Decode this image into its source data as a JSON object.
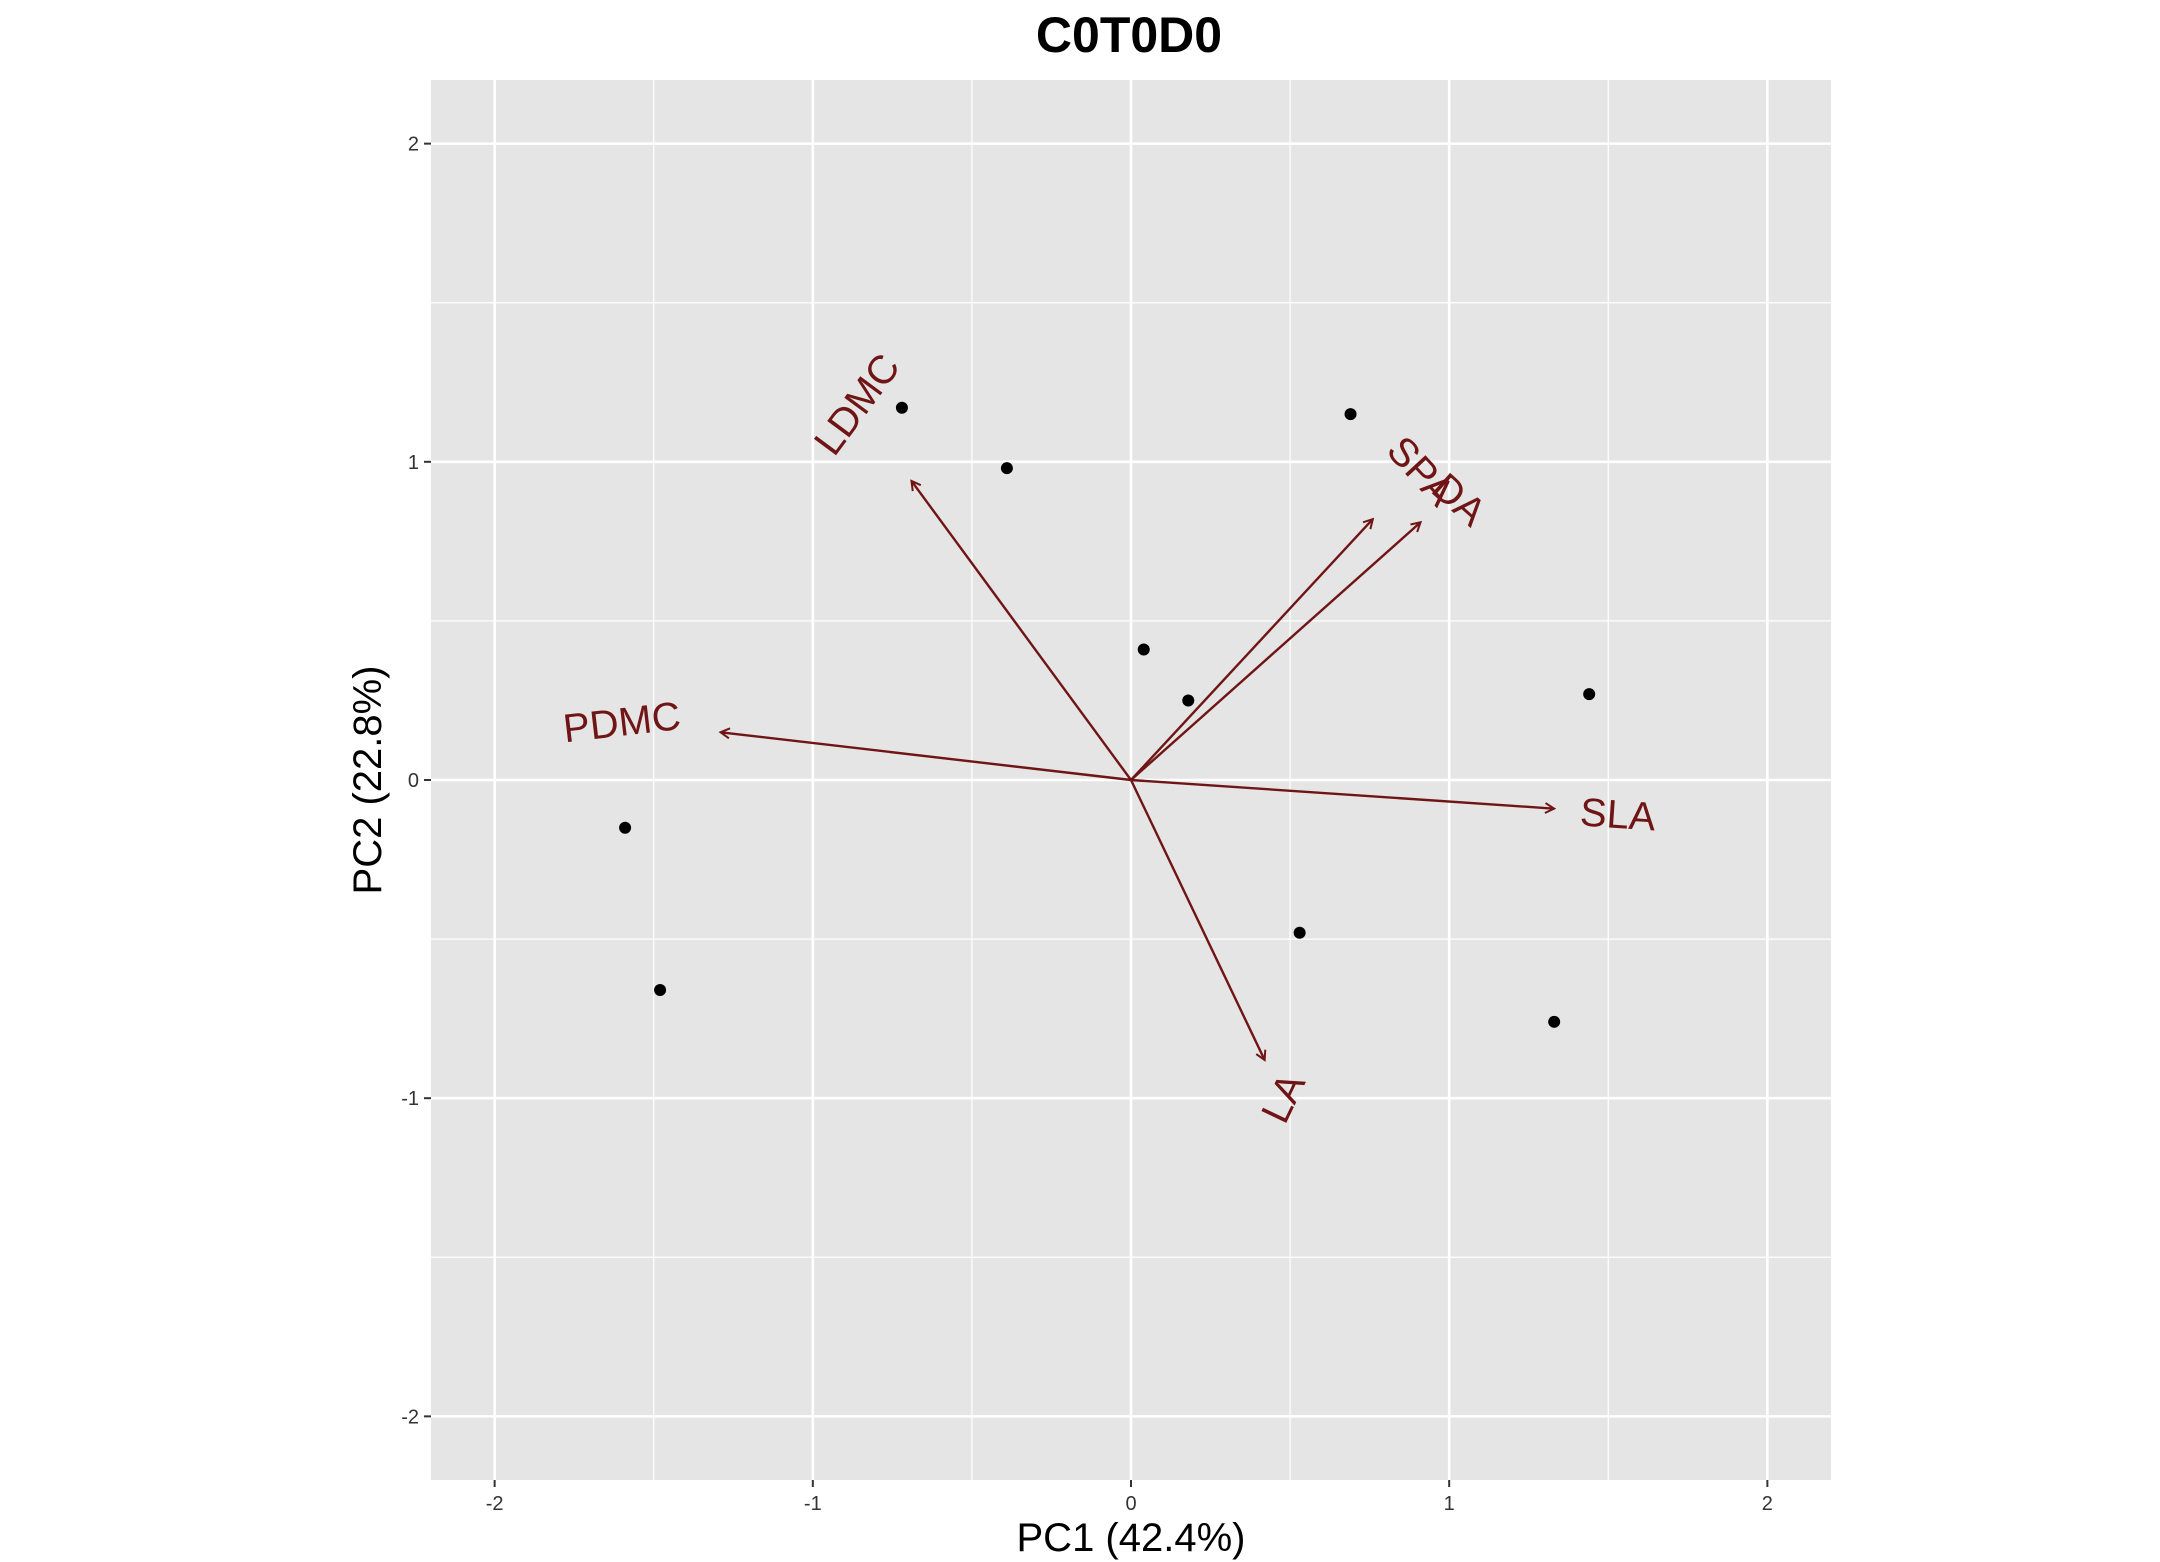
{
  "chart_data": {
    "type": "scatter",
    "title": "C0T0D0",
    "xlabel": "PC1 (42.4%)",
    "ylabel": "PC2 (22.8%)",
    "xlim": [
      -2.2,
      2.2
    ],
    "ylim": [
      -2.2,
      2.2
    ],
    "x_ticks": [
      -2,
      -1,
      0,
      1,
      2
    ],
    "y_ticks": [
      -2,
      -1,
      0,
      1,
      2
    ],
    "x_tick_labels": [
      "-2",
      "-1",
      "0",
      "1",
      "2"
    ],
    "y_tick_labels": [
      "-2",
      "-1",
      "0",
      "1",
      "2"
    ],
    "grid": true,
    "points": [
      {
        "x": -0.72,
        "y": 1.17
      },
      {
        "x": -0.39,
        "y": 0.98
      },
      {
        "x": 0.69,
        "y": 1.15
      },
      {
        "x": 0.04,
        "y": 0.41
      },
      {
        "x": 0.18,
        "y": 0.25
      },
      {
        "x": 1.44,
        "y": 0.27
      },
      {
        "x": -1.59,
        "y": -0.15
      },
      {
        "x": -1.48,
        "y": -0.66
      },
      {
        "x": 0.53,
        "y": -0.48
      },
      {
        "x": 1.33,
        "y": -0.76
      }
    ],
    "loadings": [
      {
        "name": "LDMC",
        "x": -0.69,
        "y": 0.94,
        "label_x": -0.86,
        "label_y": 1.18,
        "label_angle": -53.5
      },
      {
        "name": "SPA",
        "x": 0.76,
        "y": 0.82,
        "label_x": 0.91,
        "label_y": 0.97,
        "label_angle": 47.2
      },
      {
        "name": "DA",
        "x": 0.91,
        "y": 0.81,
        "label_x": 1.03,
        "label_y": 0.88,
        "label_angle": 41.7
      },
      {
        "name": "PDMC",
        "x": -1.29,
        "y": 0.15,
        "label_x": -1.6,
        "label_y": 0.18,
        "label_angle": -6.6
      },
      {
        "name": "SLA",
        "x": 1.33,
        "y": -0.09,
        "label_x": 1.53,
        "label_y": -0.11,
        "label_angle": 3.9
      },
      {
        "name": "LA",
        "x": 0.42,
        "y": -0.88,
        "label_x": 0.48,
        "label_y": -1.0,
        "label_angle": -64.5
      }
    ],
    "colors": {
      "panel_background": "#e5e5e5",
      "grid": "#ffffff",
      "points": "#000000",
      "loadings": "#701515"
    }
  }
}
